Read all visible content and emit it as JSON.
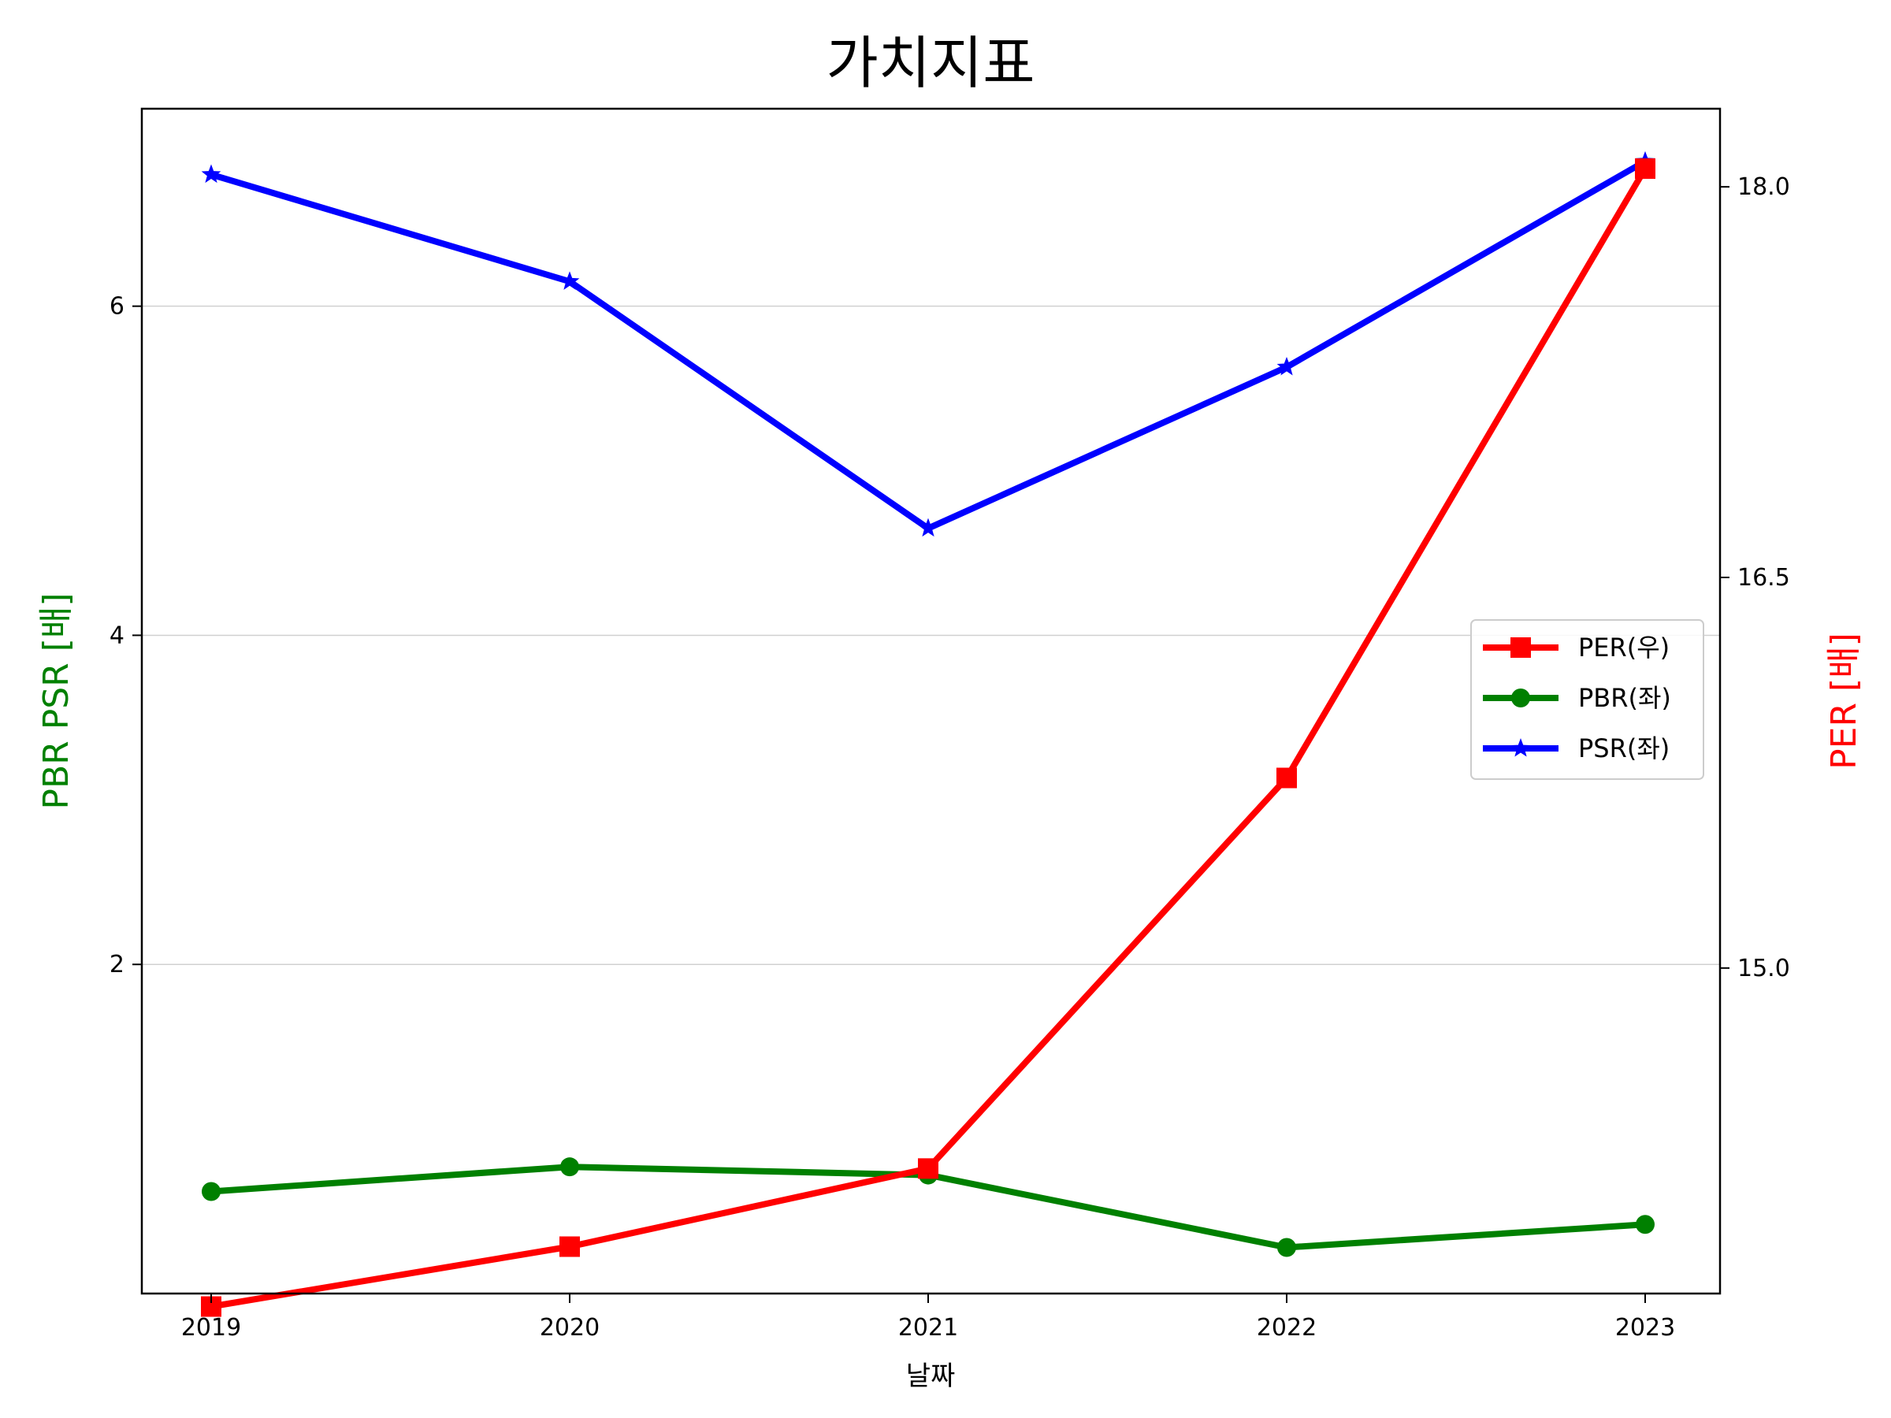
{
  "chart_data": {
    "type": "line",
    "title": "가치지표",
    "xlabel": "날짜",
    "ylabel_left": "PBR PSR [배]",
    "ylabel_right": "PER [배]",
    "categories": [
      "2019",
      "2020",
      "2021",
      "2022",
      "2023"
    ],
    "left_axis": {
      "ylim": [
        0.0,
        7.2
      ],
      "ticks": [
        2,
        4,
        6
      ],
      "tick_labels": [
        "2",
        "4",
        "6"
      ],
      "grid": true
    },
    "right_axis": {
      "ylim": [
        13.75,
        18.3
      ],
      "ticks": [
        15.0,
        16.5,
        18.0
      ],
      "tick_labels": [
        "15.0",
        "16.5",
        "18.0"
      ]
    },
    "series": [
      {
        "name": "PER(우)",
        "axis": "right",
        "color": "#ff0000",
        "marker": "square",
        "values": [
          13.7,
          13.93,
          14.23,
          15.73,
          18.07
        ]
      },
      {
        "name": "PBR(좌)",
        "axis": "left",
        "color": "#008000",
        "marker": "circle",
        "values": [
          0.62,
          0.77,
          0.72,
          0.28,
          0.42
        ]
      },
      {
        "name": "PSR(좌)",
        "axis": "left",
        "color": "#0000ff",
        "marker": "star",
        "values": [
          6.8,
          6.15,
          4.65,
          5.63,
          6.88
        ]
      }
    ],
    "legend_placement": "center-right",
    "colors": {
      "left_label": "#008000",
      "right_label": "#ff0000"
    }
  }
}
